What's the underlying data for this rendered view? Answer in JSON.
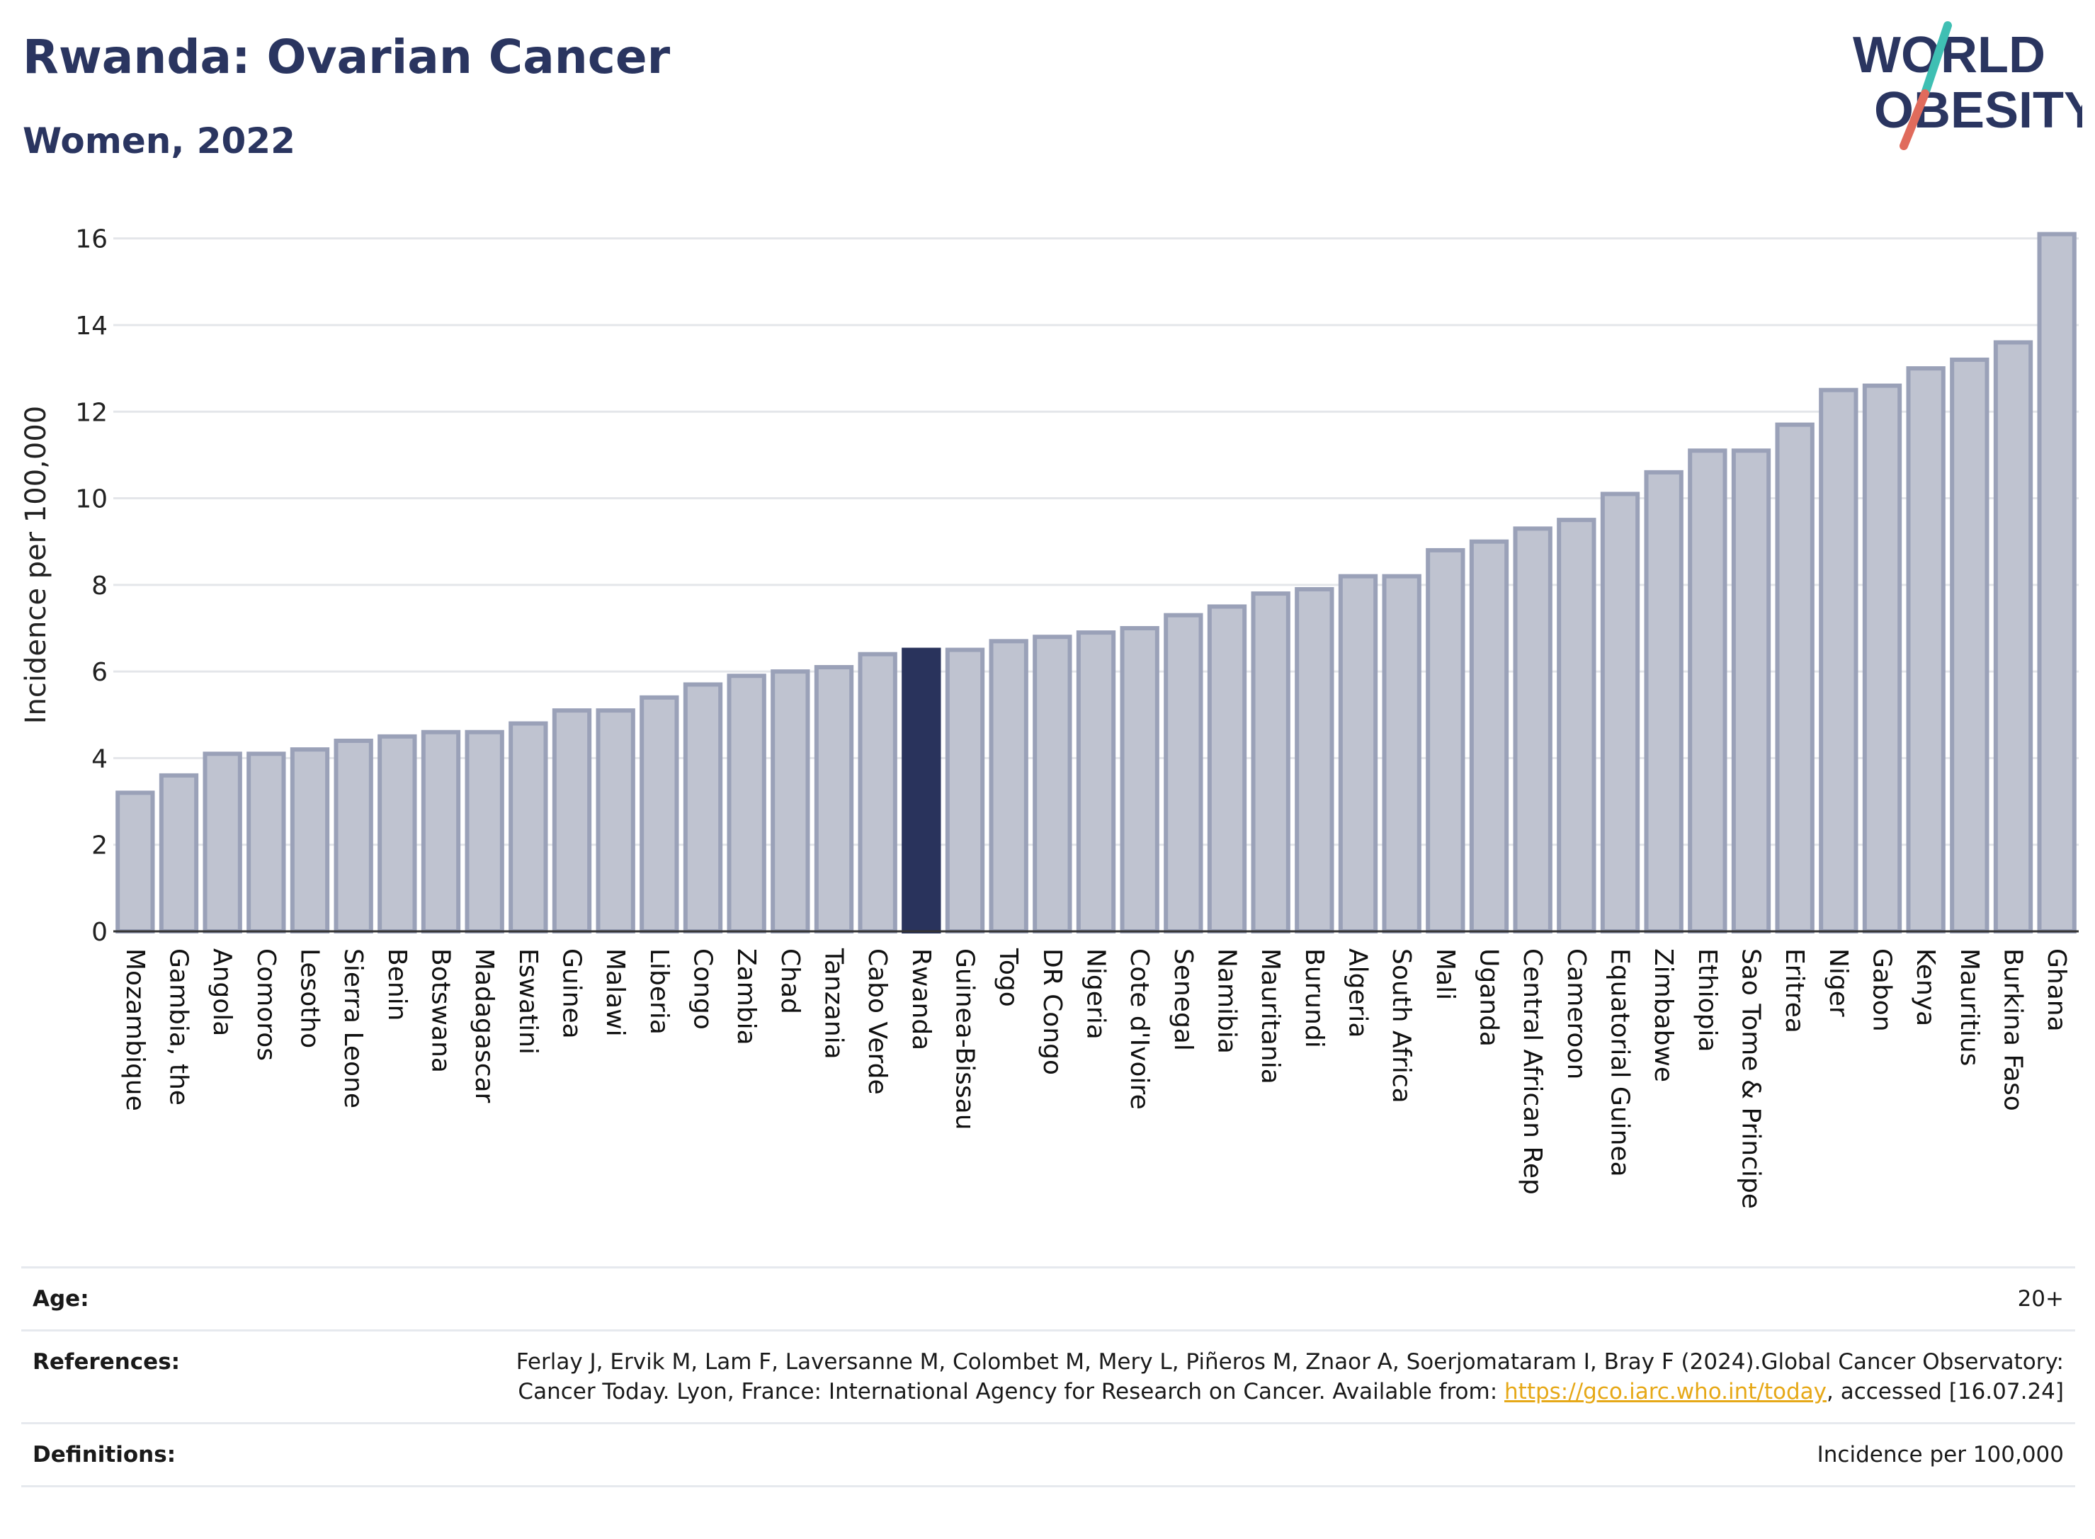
{
  "title": "Rwanda: Ovarian Cancer",
  "subtitle": "Women, 2022",
  "logo": {
    "line1": "WORLD",
    "line2": "OBESITY"
  },
  "chart_data": {
    "type": "bar",
    "ylabel": "Incidence per 100,000",
    "ylim": [
      0,
      16.6
    ],
    "yticks": [
      0,
      2,
      4,
      6,
      8,
      10,
      12,
      14,
      16
    ],
    "grid": true,
    "highlight": "Rwanda",
    "colors": {
      "bar": "#bfc3d0",
      "bar_edge": "#9aa1b8",
      "highlight": "#29335c",
      "grid": "#e4e6ea"
    },
    "categories": [
      "Mozambique",
      "Gambia, the",
      "Angola",
      "Comoros",
      "Lesotho",
      "Sierra Leone",
      "Benin",
      "Botswana",
      "Madagascar",
      "Eswatini",
      "Guinea",
      "Malawi",
      "Liberia",
      "Congo",
      "Zambia",
      "Chad",
      "Tanzania",
      "Cabo Verde",
      "Rwanda",
      "Guinea-Bissau",
      "Togo",
      "DR Congo",
      "Nigeria",
      "Cote d'Ivoire",
      "Senegal",
      "Namibia",
      "Mauritania",
      "Burundi",
      "Algeria",
      "South Africa",
      "Mali",
      "Uganda",
      "Central African Rep",
      "Cameroon",
      "Equatorial Guinea",
      "Zimbabwe",
      "Ethiopia",
      "Sao Tome & Principe",
      "Eritrea",
      "Niger",
      "Gabon",
      "Kenya",
      "Mauritius",
      "Burkina Faso",
      "Ghana"
    ],
    "values": [
      3.2,
      3.6,
      4.1,
      4.1,
      4.2,
      4.4,
      4.5,
      4.6,
      4.6,
      4.8,
      5.1,
      5.1,
      5.4,
      5.7,
      5.9,
      6.0,
      6.1,
      6.4,
      6.5,
      6.5,
      6.7,
      6.8,
      6.9,
      7.0,
      7.3,
      7.5,
      7.8,
      7.9,
      8.2,
      8.2,
      8.8,
      9.0,
      9.3,
      9.5,
      10.1,
      10.6,
      11.1,
      11.1,
      11.7,
      12.5,
      12.6,
      13.0,
      13.2,
      13.6,
      16.1
    ]
  },
  "info": {
    "age_label": "Age:",
    "age_value": "20+",
    "references_label": "References:",
    "references_text": "Ferlay J, Ervik M, Lam F, Laversanne M, Colombet M, Mery L, Piñeros M, Znaor A, Soerjomataram I, Bray F (2024).Global Cancer Observatory: Cancer Today. Lyon, France: International Agency for Research on Cancer. Available from: ",
    "references_link": "https://gco.iarc.who.int/today",
    "references_suffix": ", accessed [16.07.24]",
    "definitions_label": "Definitions:",
    "definitions_value": "Incidence per 100,000"
  }
}
